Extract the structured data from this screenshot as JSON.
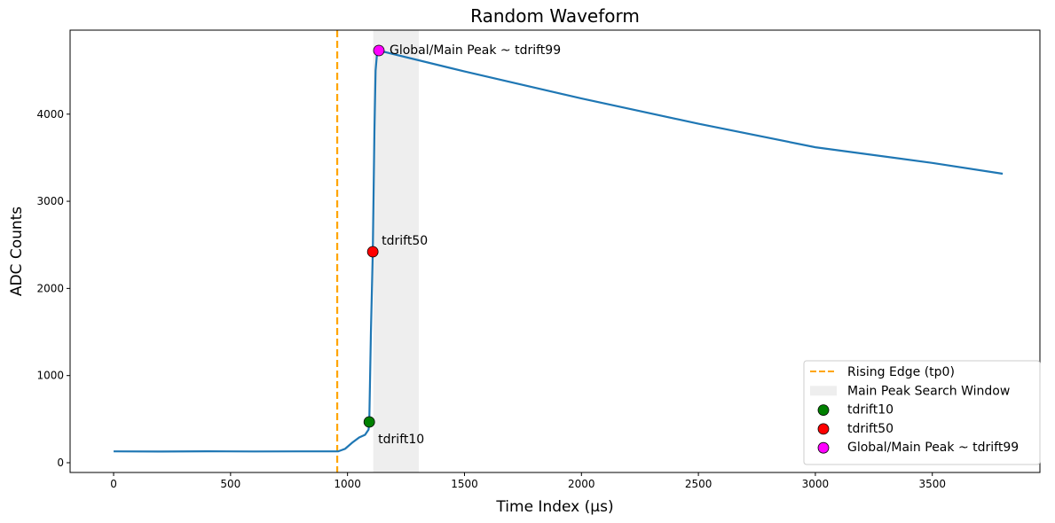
{
  "chart_data": {
    "type": "line",
    "title": "Random Waveform",
    "xlabel": "Time Index (µs)",
    "ylabel": "ADC Counts",
    "xlim": [
      -186,
      3960
    ],
    "ylim": [
      -112,
      4964
    ],
    "xticks": [
      0,
      500,
      1000,
      1500,
      2000,
      2500,
      3000,
      3500
    ],
    "yticks": [
      0,
      1000,
      2000,
      3000,
      4000
    ],
    "grid": false,
    "legend_placement": "lower-right",
    "series": [
      {
        "color": "#1f77b4",
        "x": [
          0,
          200,
          400,
          600,
          800,
          960,
          990,
          1020,
          1050,
          1075,
          1090,
          1093,
          1100,
          1108,
          1115,
          1120,
          1126,
          1134,
          1500,
          2000,
          2500,
          3000,
          3500,
          3801
        ],
        "y": [
          130,
          128,
          131,
          129,
          130,
          130,
          160,
          230,
          290,
          320,
          380,
          468,
          1500,
          2421,
          3800,
          4500,
          4690,
          4730,
          4490,
          4180,
          3890,
          3620,
          3440,
          3316
        ]
      }
    ],
    "vline": {
      "x": 956,
      "label": "Rising Edge (tp0)",
      "color": "#ffa500"
    },
    "window": {
      "x0": 1110,
      "x1": 1305,
      "label": "Main Peak Search Window",
      "color": "#eeeeee"
    },
    "points": [
      {
        "x": 1093,
        "y": 468,
        "label": "tdrift10",
        "legend": "tdrift10",
        "color": "#008000"
      },
      {
        "x": 1108,
        "y": 2421,
        "label": "tdrift50",
        "legend": "tdrift50",
        "color": "#ff0000"
      },
      {
        "x": 1134,
        "y": 4730,
        "label": "Global/Main Peak ~ tdrift99",
        "legend": "Global/Main Peak ~ tdrift99",
        "color": "#ff00ff"
      }
    ]
  }
}
